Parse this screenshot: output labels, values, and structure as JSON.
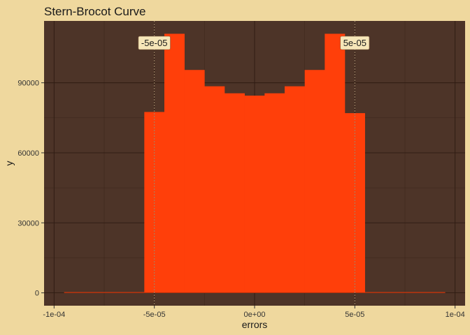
{
  "chart_data": {
    "type": "bar",
    "title": "Stern-Brocot Curve",
    "xlabel": "errors",
    "ylabel": "y",
    "xlim": [
      -0.000105,
      0.000105
    ],
    "ylim": [
      -5500,
      116500
    ],
    "x_ticks": [
      {
        "value": -0.0001,
        "label": "-1e-04"
      },
      {
        "value": -5e-05,
        "label": "-5e-05"
      },
      {
        "value": 0,
        "label": "0e+00"
      },
      {
        "value": 5e-05,
        "label": "5e-05"
      },
      {
        "value": 0.0001,
        "label": "1e-04"
      }
    ],
    "y_ticks": [
      {
        "value": 0,
        "label": "0"
      },
      {
        "value": 30000,
        "label": "30000"
      },
      {
        "value": 60000,
        "label": "60000"
      },
      {
        "value": 90000,
        "label": "90000"
      }
    ],
    "bins": [
      {
        "x0": -9.5e-05,
        "x1": -5.5e-05,
        "y": 0
      },
      {
        "x0": -5.5e-05,
        "x1": -4.5e-05,
        "y": 77500
      },
      {
        "x0": -4.5e-05,
        "x1": -3.5e-05,
        "y": 111000
      },
      {
        "x0": -3.5e-05,
        "x1": -2.5e-05,
        "y": 95500
      },
      {
        "x0": -2.5e-05,
        "x1": -1.5e-05,
        "y": 88500
      },
      {
        "x0": -1.5e-05,
        "x1": -5e-06,
        "y": 85500
      },
      {
        "x0": -5e-06,
        "x1": 5e-06,
        "y": 84500
      },
      {
        "x0": 5e-06,
        "x1": 1.5e-05,
        "y": 85500
      },
      {
        "x0": 1.5e-05,
        "x1": 2.5e-05,
        "y": 88500
      },
      {
        "x0": 2.5e-05,
        "x1": 3.5e-05,
        "y": 95500
      },
      {
        "x0": 3.5e-05,
        "x1": 4.5e-05,
        "y": 111000
      },
      {
        "x0": 4.5e-05,
        "x1": 5.5e-05,
        "y": 77000
      },
      {
        "x0": 5.5e-05,
        "x1": 9.5e-05,
        "y": 0
      }
    ],
    "reference_lines": [
      {
        "x": -5e-05,
        "label": "-5e-05"
      },
      {
        "x": 5e-05,
        "label": "5e-05"
      }
    ],
    "grid": true,
    "legend": "none"
  },
  "colors": {
    "page_background": "#EFD89E",
    "panel_background": "#4D3428",
    "grid": "#2E1B12",
    "bar_fill": "#FF3F0A",
    "reference_line": "#A0866A",
    "label_fill": "#F6E6B8"
  }
}
